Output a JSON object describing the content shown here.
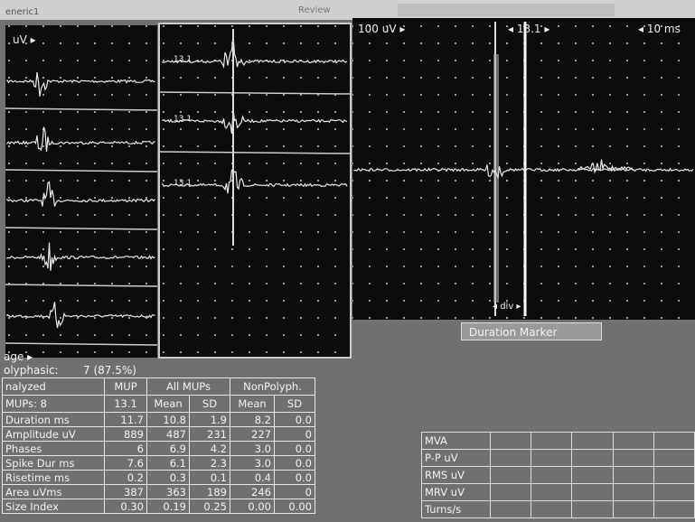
{
  "header": {
    "app": "eneric1",
    "menu": "Review"
  },
  "left_panel": {
    "scale": "uV ▸"
  },
  "middle_panel": {
    "labels": [
      "13.1",
      "13.1",
      "13.1"
    ]
  },
  "right_panel": {
    "scale": "100 uV ▸",
    "mup": "◂ 13.1 ▸",
    "sweep": "◂ 10 ms",
    "div": "◂ div ▸",
    "marker": "Duration Marker"
  },
  "summary": {
    "page": "age ▸",
    "polyphasic_label": "olyphasic:",
    "polyphasic_value": "7 (87.5%)"
  },
  "table": {
    "analyzed": "nalyzed",
    "mups": "MUPs:",
    "mups_count": "8",
    "mup_header": "MUP",
    "mup_id": "13.1",
    "all_header": "All MUPs",
    "nonpoly_header": "NonPolyph.",
    "sub": [
      "Mean",
      "SD",
      "Mean",
      "SD"
    ],
    "rows": [
      {
        "label": "Duration ms",
        "values": [
          "11.7",
          "10.8",
          "1.9",
          "8.2",
          "0.0"
        ]
      },
      {
        "label": "Amplitude uV",
        "values": [
          "889",
          "487",
          "231",
          "227",
          "0"
        ]
      },
      {
        "label": "Phases",
        "values": [
          "6",
          "6.9",
          "4.2",
          "3.0",
          "0.0"
        ]
      },
      {
        "label": "Spike Dur ms",
        "values": [
          "7.6",
          "6.1",
          "2.3",
          "3.0",
          "0.0"
        ]
      },
      {
        "label": "Risetime ms",
        "values": [
          "0.2",
          "0.3",
          "0.1",
          "0.4",
          "0.0"
        ]
      },
      {
        "label": "Area uVms",
        "values": [
          "387",
          "363",
          "189",
          "246",
          "0"
        ]
      },
      {
        "label": "Size Index",
        "values": [
          "0.30",
          "0.19",
          "0.25",
          "0.00",
          "0.00"
        ]
      }
    ]
  },
  "mva": {
    "title": "MVA",
    "rows": [
      "P-P  uV",
      "RMS  uV",
      "MRV  uV",
      "Turns/s"
    ]
  }
}
